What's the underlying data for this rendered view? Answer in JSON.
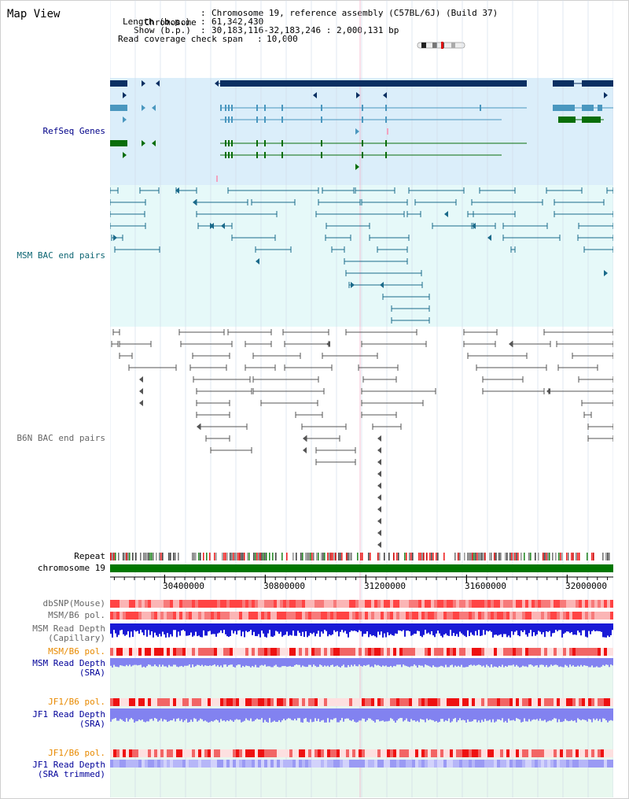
{
  "title": "Map View",
  "info": {
    "chromosome_key": "Chromosome",
    "chromosome_val": "Chromosome 19, reference assembly (C57BL/6J) (Build 37)",
    "length_key": "Length (b.p.)",
    "length_val": "61,342,430",
    "show_key": "Show (b.p.)",
    "show_val": "30,183,116-32,183,246 : 2,000,131 bp",
    "span_key": "Read coverage check span",
    "span_val": "10,000"
  },
  "tracks": {
    "refseq": "RefSeq Genes",
    "msm_bac": "MSM BAC end pairs",
    "b6n_bac": "B6N BAC end pairs",
    "repeat": "Repeat",
    "chromosome": "chromosome 19",
    "dbsnp": "dbSNP(Mouse)",
    "msm_b6_pol": "MSM/B6 pol.",
    "msm_depth_1": "MSM Read Depth",
    "msm_depth_2": "(Capillary)",
    "msm_b6_pol_sra": "MSM/B6 pol.",
    "msm_sra_1": "MSM Read Depth",
    "msm_sra_2": "(SRA)",
    "jf1_pol": "JF1/B6 pol.",
    "jf1_sra_1": "JF1 Read Depth",
    "jf1_sra_2": "(SRA)",
    "jf1_pol_2": "JF1/B6 pol.",
    "jf1_trim_1": "JF1 Read Depth",
    "jf1_trim_2": "(SRA trimmed)"
  },
  "axis": {
    "start": 30183116,
    "end": 32183246,
    "tick_labels": [
      "30400000",
      "30800000",
      "31200000",
      "31600000",
      "32000000"
    ],
    "tick_values": [
      30400000,
      30800000,
      31200000,
      31600000,
      32000000
    ]
  },
  "colors": {
    "refseq_bg": "#dbeefa",
    "msm_bg": "#e6f9f9",
    "gene_navy": "#0a2f62",
    "gene_teal": "#4a97bf",
    "gene_green": "#0a6e0a",
    "bac_teal": "#1a6a8a",
    "bac_gray": "#555555",
    "chrom_green": "#007700",
    "depth_blue": "#1a1ad6",
    "sra_blue": "#8282f0",
    "pol_red": "#ee3333"
  }
}
